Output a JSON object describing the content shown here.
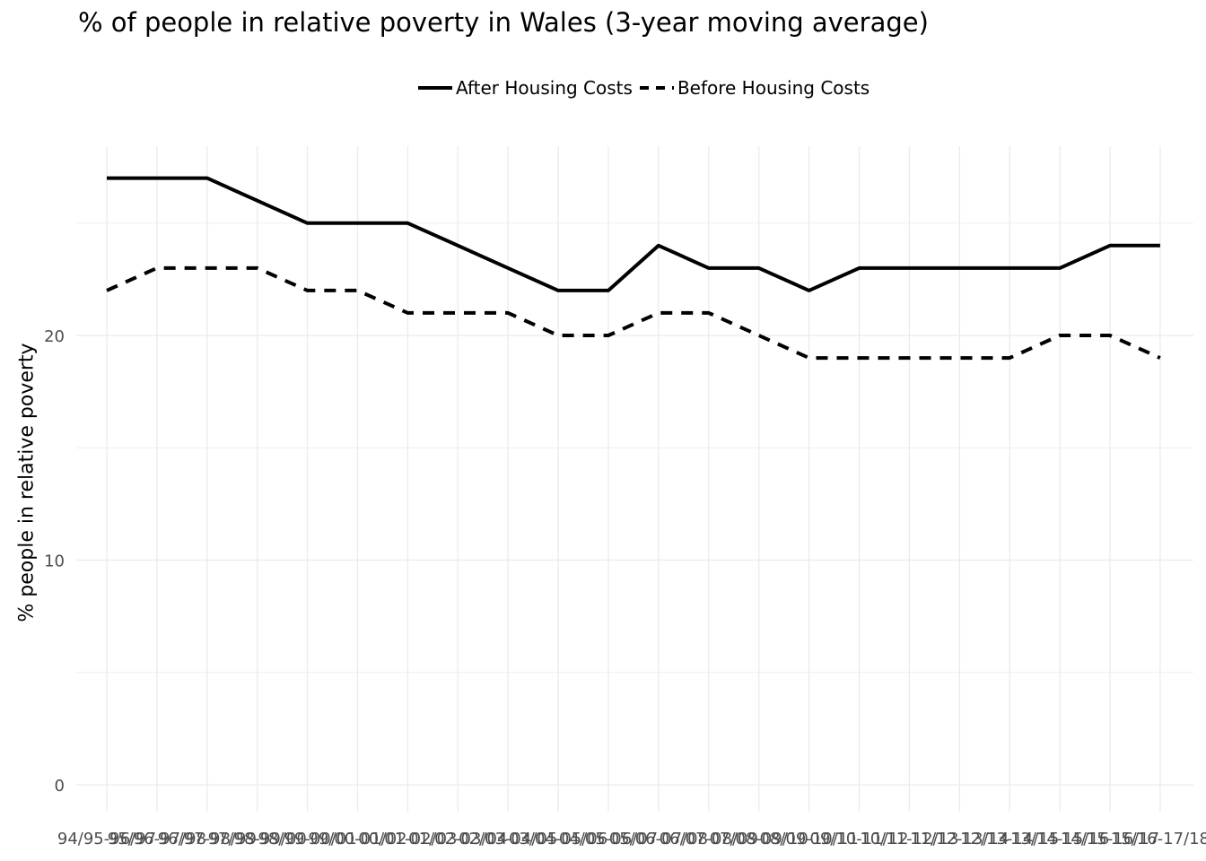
{
  "chart_data": {
    "type": "line",
    "title": "% of people in relative poverty in Wales (3-year moving average)",
    "xlabel": "",
    "ylabel": "% people in relative poverty",
    "ylim": [
      0,
      27.9
    ],
    "yticks": [
      0,
      10,
      20
    ],
    "grid": true,
    "legend_position": "top",
    "categories": [
      "94/95-96/97",
      "95/96-97/98",
      "96/97-98/99",
      "97/98-99/00",
      "98/99-00/01",
      "99/00-01/02",
      "00/01-02/03",
      "01/02-03/04",
      "02/03-04/05",
      "03/04-05/06",
      "04/05-06/07",
      "05/06-07/08",
      "06/07-08/09",
      "07/08-09/10",
      "08/09-10/11",
      "09/10-11/12",
      "10/11-12/13",
      "11/12-13/14",
      "12/13-14/15",
      "13/14-15/16",
      "14/15-16/17",
      "15/16-17/18"
    ],
    "series": [
      {
        "name": "After Housing Costs",
        "style": "solid",
        "color": "#000000",
        "values": [
          27,
          27,
          27,
          26,
          25,
          25,
          25,
          24,
          23,
          22,
          22,
          24,
          23,
          23,
          22,
          23,
          23,
          23,
          23,
          23,
          24,
          24
        ]
      },
      {
        "name": "Before Housing Costs",
        "style": "dashed",
        "color": "#000000",
        "values": [
          22,
          23,
          23,
          23,
          22,
          22,
          21,
          21,
          21,
          20,
          20,
          21,
          21,
          20,
          19,
          19,
          19,
          19,
          19,
          20,
          20,
          19
        ]
      }
    ]
  }
}
